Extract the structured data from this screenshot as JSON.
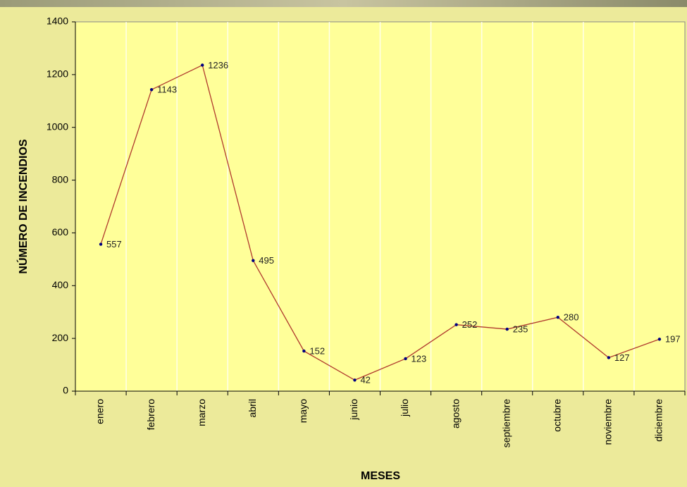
{
  "chart_data": {
    "type": "line",
    "x_label": "MESES",
    "y_label": "NÚMERO DE INCENDIOS",
    "categories": [
      "enero",
      "febrero",
      "marzo",
      "abril",
      "mayo",
      "junio",
      "julio",
      "agosto",
      "septiembre",
      "octubre",
      "noviembre",
      "diciembre"
    ],
    "values": [
      557,
      1143,
      1236,
      495,
      152,
      42,
      123,
      252,
      235,
      280,
      127,
      197
    ],
    "color": "#b03a2e",
    "marker_color": "#000080",
    "ylim": [
      0,
      1400
    ],
    "yticks": [
      0,
      200,
      400,
      600,
      800,
      1000,
      1200,
      1400
    ],
    "grid": true
  }
}
